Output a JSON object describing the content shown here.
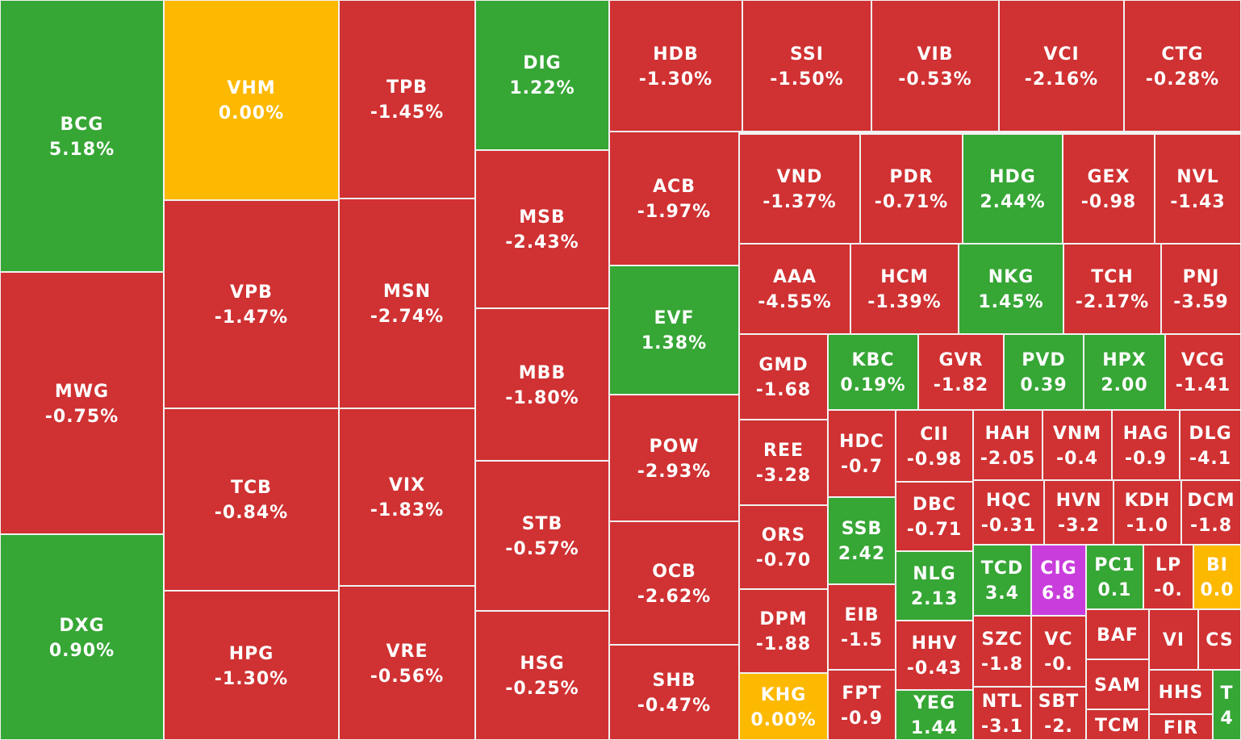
{
  "colors": {
    "down": "#d03132",
    "up": "#36a635",
    "unchanged": "#fdb800",
    "ceiling": "#c93ddc",
    "gap": "#f2f2f2",
    "text": "#ffffff"
  },
  "chart_data": {
    "type": "heatmap",
    "tiles": [
      {
        "symbol": "BCG",
        "change": "5.18%",
        "status": "up"
      },
      {
        "symbol": "MWG",
        "change": "-0.75%",
        "status": "down"
      },
      {
        "symbol": "DXG",
        "change": "0.90%",
        "status": "up"
      },
      {
        "symbol": "VHM",
        "change": "0.00%",
        "status": "unchanged"
      },
      {
        "symbol": "VPB",
        "change": "-1.47%",
        "status": "down"
      },
      {
        "symbol": "TCB",
        "change": "-0.84%",
        "status": "down"
      },
      {
        "symbol": "HPG",
        "change": "-1.30%",
        "status": "down"
      },
      {
        "symbol": "TPB",
        "change": "-1.45%",
        "status": "down"
      },
      {
        "symbol": "MSN",
        "change": "-2.74%",
        "status": "down"
      },
      {
        "symbol": "VIX",
        "change": "-1.83%",
        "status": "down"
      },
      {
        "symbol": "VRE",
        "change": "-0.56%",
        "status": "down"
      },
      {
        "symbol": "DIG",
        "change": "1.22%",
        "status": "up"
      },
      {
        "symbol": "MSB",
        "change": "-2.43%",
        "status": "down"
      },
      {
        "symbol": "MBB",
        "change": "-1.80%",
        "status": "down"
      },
      {
        "symbol": "STB",
        "change": "-0.57%",
        "status": "down"
      },
      {
        "symbol": "HSG",
        "change": "-0.25%",
        "status": "down"
      },
      {
        "symbol": "HDB",
        "change": "-1.30%",
        "status": "down"
      },
      {
        "symbol": "SSI",
        "change": "-1.50%",
        "status": "down"
      },
      {
        "symbol": "VIB",
        "change": "-0.53%",
        "status": "down"
      },
      {
        "symbol": "VCI",
        "change": "-2.16%",
        "status": "down"
      },
      {
        "symbol": "CTG",
        "change": "-0.28%",
        "status": "down"
      },
      {
        "symbol": "ACB",
        "change": "-1.97%",
        "status": "down"
      },
      {
        "symbol": "EVF",
        "change": "1.38%",
        "status": "up"
      },
      {
        "symbol": "POW",
        "change": "-2.93%",
        "status": "down"
      },
      {
        "symbol": "OCB",
        "change": "-2.62%",
        "status": "down"
      },
      {
        "symbol": "SHB",
        "change": "-0.47%",
        "status": "down"
      },
      {
        "symbol": "VND",
        "change": "-1.37%",
        "status": "down"
      },
      {
        "symbol": "PDR",
        "change": "-0.71%",
        "status": "down"
      },
      {
        "symbol": "HDG",
        "change": "2.44%",
        "status": "up"
      },
      {
        "symbol": "GEX",
        "change": "-0.98",
        "status": "down"
      },
      {
        "symbol": "NVL",
        "change": "-1.43",
        "status": "down"
      },
      {
        "symbol": "AAA",
        "change": "-4.55%",
        "status": "down"
      },
      {
        "symbol": "HCM",
        "change": "-1.39%",
        "status": "down"
      },
      {
        "symbol": "NKG",
        "change": "1.45%",
        "status": "up"
      },
      {
        "symbol": "TCH",
        "change": "-2.17%",
        "status": "down"
      },
      {
        "symbol": "PNJ",
        "change": "-3.59",
        "status": "down"
      },
      {
        "symbol": "GMD",
        "change": "-1.68",
        "status": "down"
      },
      {
        "symbol": "REE",
        "change": "-3.28",
        "status": "down"
      },
      {
        "symbol": "ORS",
        "change": "-0.70",
        "status": "down"
      },
      {
        "symbol": "DPM",
        "change": "-1.88",
        "status": "down"
      },
      {
        "symbol": "KHG",
        "change": "0.00%",
        "status": "unchanged"
      },
      {
        "symbol": "KBC",
        "change": "0.19%",
        "status": "up"
      },
      {
        "symbol": "GVR",
        "change": "-1.82",
        "status": "down"
      },
      {
        "symbol": "PVD",
        "change": "0.39",
        "status": "up"
      },
      {
        "symbol": "HPX",
        "change": "2.00",
        "status": "up"
      },
      {
        "symbol": "VCG",
        "change": "-1.41",
        "status": "down"
      },
      {
        "symbol": "HDC",
        "change": "-0.7",
        "status": "down"
      },
      {
        "symbol": "SSB",
        "change": "2.42",
        "status": "up"
      },
      {
        "symbol": "EIB",
        "change": "-1.5",
        "status": "down"
      },
      {
        "symbol": "FPT",
        "change": "-0.9",
        "status": "down"
      },
      {
        "symbol": "CII",
        "change": "-0.98",
        "status": "down"
      },
      {
        "symbol": "DBC",
        "change": "-0.71",
        "status": "down"
      },
      {
        "symbol": "NLG",
        "change": "2.13",
        "status": "up"
      },
      {
        "symbol": "HHV",
        "change": "-0.43",
        "status": "down"
      },
      {
        "symbol": "YEG",
        "change": "1.44",
        "status": "up"
      },
      {
        "symbol": "HAH",
        "change": "-2.05",
        "status": "down"
      },
      {
        "symbol": "VNM",
        "change": "-0.4",
        "status": "down"
      },
      {
        "symbol": "HAG",
        "change": "-0.9",
        "status": "down"
      },
      {
        "symbol": "DLG",
        "change": "-4.1",
        "status": "down"
      },
      {
        "symbol": "HQC",
        "change": "-0.31",
        "status": "down"
      },
      {
        "symbol": "HVN",
        "change": "-3.2",
        "status": "down"
      },
      {
        "symbol": "KDH",
        "change": "-1.0",
        "status": "down"
      },
      {
        "symbol": "DCM",
        "change": "-1.8",
        "status": "down"
      },
      {
        "symbol": "TCD",
        "change": "3.4",
        "status": "up"
      },
      {
        "symbol": "CIG",
        "change": "6.8",
        "status": "ceiling"
      },
      {
        "symbol": "PC1",
        "change": "0.1",
        "status": "up"
      },
      {
        "symbol": "LP",
        "change": "-0.",
        "status": "down"
      },
      {
        "symbol": "BI",
        "change": "0.0",
        "status": "unchanged"
      },
      {
        "symbol": "SZC",
        "change": "-1.8",
        "status": "down"
      },
      {
        "symbol": "VC",
        "change": "-0.",
        "status": "down"
      },
      {
        "symbol": "NTL",
        "change": "-3.1",
        "status": "down"
      },
      {
        "symbol": "SBT",
        "change": "-2.",
        "status": "down"
      },
      {
        "symbol": "BAF",
        "change": "",
        "status": "down"
      },
      {
        "symbol": "VI",
        "change": "",
        "status": "down"
      },
      {
        "symbol": "CS",
        "change": "",
        "status": "down"
      },
      {
        "symbol": "SAM",
        "change": "",
        "status": "down"
      },
      {
        "symbol": "HHS",
        "change": "",
        "status": "down"
      },
      {
        "symbol": "T",
        "change": "4",
        "status": "up"
      },
      {
        "symbol": "TCM",
        "change": "",
        "status": "down"
      },
      {
        "symbol": "FIR",
        "change": "",
        "status": "down"
      }
    ]
  }
}
